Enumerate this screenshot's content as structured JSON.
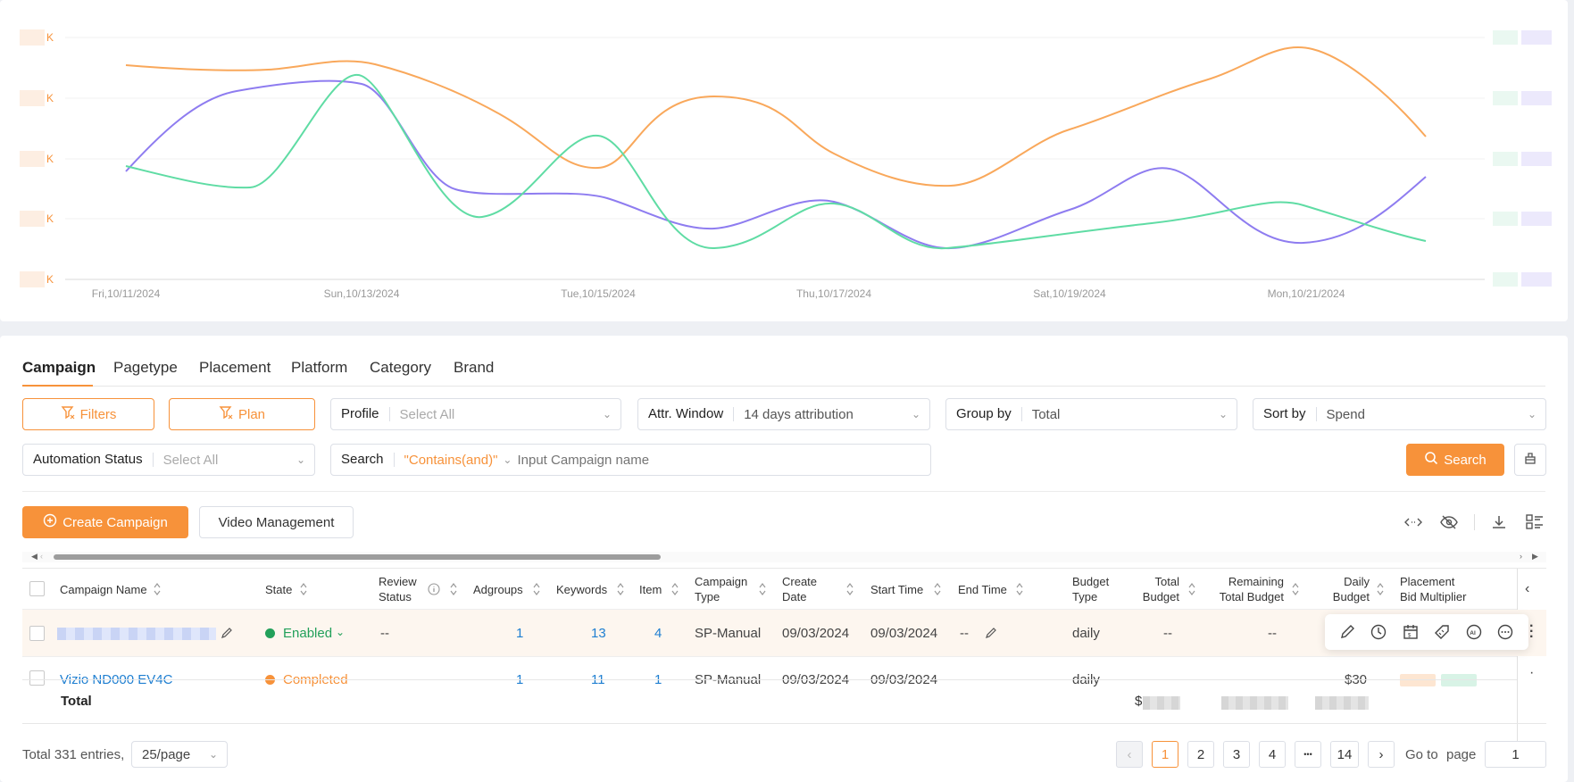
{
  "chart": {
    "y_tick_labels": [
      "K",
      "K",
      "K",
      "K",
      "K"
    ],
    "x_tick_labels": [
      "Fri,10/11/2024",
      "Sun,10/13/2024",
      "Tue,10/15/2024",
      "Thu,10/17/2024",
      "Sat,10/19/2024",
      "Mon,10/21/2024"
    ],
    "colors": {
      "orange": "#f9a85b",
      "purple": "#8e7cf0",
      "green": "#5fdca4"
    }
  },
  "tabs": [
    "Campaign",
    "Pagetype",
    "Placement",
    "Platform",
    "Category",
    "Brand"
  ],
  "filters": {
    "filters_label": "Filters",
    "plan_label": "Plan",
    "profile": {
      "label": "Profile",
      "value": "Select All"
    },
    "attr_window": {
      "label": "Attr. Window",
      "value": "14 days attribution"
    },
    "group_by": {
      "label": "Group by",
      "value": "Total"
    },
    "sort_by": {
      "label": "Sort by",
      "value": "Spend"
    },
    "automation_status": {
      "label": "Automation Status",
      "value": "Select All"
    },
    "search": {
      "label": "Search",
      "mode": "\"Contains(and)\"",
      "placeholder": "Input Campaign name"
    },
    "search_button": "Search"
  },
  "actions": {
    "create_campaign": "Create Campaign",
    "video_management": "Video Management"
  },
  "table": {
    "headers": {
      "campaign_name": "Campaign Name",
      "state": "State",
      "review_status_1": "Review",
      "review_status_2": "Status",
      "adgroups": "Adgroups",
      "keywords": "Keywords",
      "item": "Item",
      "campaign_type_1": "Campaign",
      "campaign_type_2": "Type",
      "create_date_1": "Create",
      "create_date_2": "Date",
      "start_time": "Start Time",
      "end_time": "End Time",
      "budget_type_1": "Budget",
      "budget_type_2": "Type",
      "total_budget_1": "Total",
      "total_budget_2": "Budget",
      "remaining_1": "Remaining",
      "remaining_2": "Total Budget",
      "daily_budget_1": "Daily",
      "daily_budget_2": "Budget",
      "placement_1": "Placement",
      "placement_2": "Bid Multiplier"
    },
    "row1": {
      "state": "Enabled",
      "review_status": "--",
      "adgroups": "1",
      "keywords": "13",
      "item": "4",
      "campaign_type": "SP-Manual",
      "create_date": "09/03/2024",
      "start_time": "09/03/2024",
      "end_time": "--",
      "budget_type": "daily",
      "total_budget": "--",
      "remaining": "--"
    },
    "row2_partial": {
      "name": "Vizio ND000 EV4C",
      "state": "Completed",
      "adgroups": "1",
      "keywords": "11",
      "item": "1",
      "campaign_type": "SP-Manual",
      "create_date": "09/03/2024",
      "start_time": "09/03/2024",
      "budget_type": "daily",
      "daily_budget": "$30"
    },
    "total_label": "Total",
    "total_prefix": "$"
  },
  "pagination": {
    "total_text": "Total 331 entries,",
    "page_size": "25/page",
    "pages": [
      "1",
      "2",
      "3",
      "4",
      "14"
    ],
    "more": "•••",
    "goto_label": "Go to",
    "page_label": "page",
    "goto_value": "1"
  }
}
